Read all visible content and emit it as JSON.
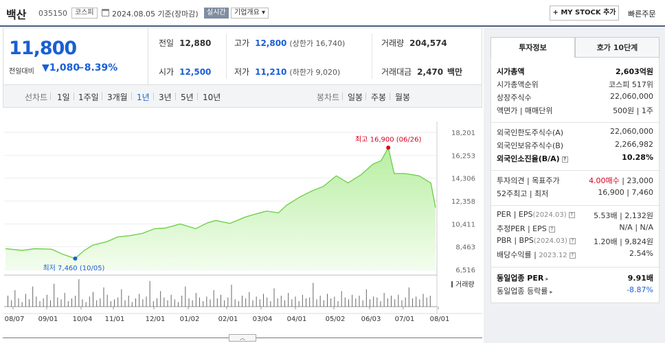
{
  "header": {
    "stock_name": "백산",
    "stock_code": "035150",
    "market": "코스피",
    "date_text": "2024.08.05  기준(장마감)",
    "realtime": "실시간",
    "overview": "기업개요",
    "overview_arrow": "▾",
    "mystock": "+ MY STOCK 추가",
    "quick_order": "빠른주문"
  },
  "price": {
    "current": "11,800",
    "change_label": "전일대비",
    "change_arrow": "▼",
    "change_abs": "1,080",
    "change_pct": "−8.39%"
  },
  "stats": {
    "prev_label": "전일",
    "prev_value": "12,880",
    "high_label": "고가",
    "high_value": "12,800",
    "high_sub": "(상한가 16,740)",
    "volume_label": "거래량",
    "volume_value": "204,574",
    "open_label": "시가",
    "open_value": "12,500",
    "low_label": "저가",
    "low_value": "11,210",
    "low_sub": "(하한가 9,020)",
    "amount_label": "거래대금",
    "amount_value": "2,470",
    "amount_unit": "백만"
  },
  "tabs": {
    "line_chart": "선차트",
    "periods": [
      "1일",
      "1주일",
      "3개월",
      "1년",
      "3년",
      "5년",
      "10년"
    ],
    "active_period": "1년",
    "candle_chart": "봉차트",
    "candle_periods": [
      "일봉",
      "주봉",
      "월봉"
    ]
  },
  "chart_data": {
    "type": "area",
    "x_labels": [
      "08/07",
      "09/01",
      "10/04",
      "11/01",
      "12/01",
      "01/02",
      "02/01",
      "03/04",
      "04/01",
      "05/02",
      "06/03",
      "07/01",
      "08/01"
    ],
    "yticks": [
      18201,
      16253,
      14306,
      12358,
      10411,
      8463,
      6516
    ],
    "ylim": [
      6516,
      18201
    ],
    "series": [
      {
        "x": [
          "2023-08-07",
          "2023-08-21",
          "2023-09-01",
          "2023-09-15",
          "2023-09-25",
          "2023-10-04",
          "2023-10-05",
          "2023-10-12",
          "2023-10-20",
          "2023-11-01",
          "2023-11-10",
          "2023-11-20",
          "2023-12-01",
          "2023-12-11",
          "2023-12-20",
          "2024-01-02",
          "2024-01-15",
          "2024-01-25",
          "2024-02-01",
          "2024-02-13",
          "2024-02-26",
          "2024-03-04",
          "2024-03-15",
          "2024-03-25",
          "2024-04-01",
          "2024-04-12",
          "2024-04-22",
          "2024-05-02",
          "2024-05-13",
          "2024-05-23",
          "2024-06-03",
          "2024-06-13",
          "2024-06-20",
          "2024-06-26",
          "2024-07-01",
          "2024-07-10",
          "2024-07-22",
          "2024-08-01",
          "2024-08-05"
        ],
        "y": [
          8300,
          8150,
          8300,
          8250,
          7800,
          7500,
          7460,
          8100,
          8600,
          8900,
          9300,
          9400,
          9600,
          10000,
          10050,
          10400,
          10000,
          10500,
          10700,
          10450,
          11000,
          11200,
          11500,
          11350,
          12000,
          12700,
          13200,
          13600,
          14500,
          13900,
          14600,
          15500,
          15800,
          16900,
          14700,
          14700,
          14500,
          13900,
          11800
        ]
      }
    ],
    "annotations": {
      "high": {
        "label": "최고 16,900 (06/26)",
        "date": "2024-06-26",
        "value": 16900
      },
      "low": {
        "label": "최저 7,460 (10/05)",
        "date": "2023-10-05",
        "value": 7460
      }
    },
    "volume_label": "거래량",
    "volume_bars": [
      12,
      7,
      18,
      9,
      5,
      14,
      8,
      22,
      11,
      6,
      9,
      13,
      7,
      25,
      10,
      8,
      15,
      6,
      9,
      12,
      30,
      8,
      5,
      11,
      16,
      7,
      9,
      21,
      13,
      6,
      8,
      10,
      19,
      7,
      12,
      5,
      9,
      14,
      8,
      11,
      28,
      6,
      9,
      17,
      10,
      7,
      13,
      8,
      5,
      12,
      22,
      9,
      7,
      15,
      10,
      6,
      11,
      8,
      18,
      9,
      13,
      7,
      10,
      24,
      8,
      6,
      12,
      9,
      16,
      7,
      11,
      8,
      14,
      10,
      6,
      20,
      9,
      12,
      7,
      15,
      8,
      11,
      6,
      13,
      9,
      10,
      26,
      8,
      12,
      7,
      14,
      9,
      11,
      6,
      17,
      10,
      8,
      13,
      9,
      12,
      7,
      19,
      8,
      11,
      10,
      6,
      15,
      9,
      12,
      8,
      13,
      7,
      10,
      21,
      9,
      11,
      8,
      14,
      10,
      12
    ]
  },
  "expand": "︿",
  "right": {
    "tab_invest": "투자정보",
    "tab_hoga": "호가 10단계",
    "rows": [
      {
        "k": "시가총액",
        "v": "2,603억원",
        "bold": true
      },
      {
        "k": "시가총액순위",
        "v": "코스피  517위"
      },
      {
        "k": "상장주식수",
        "v": "22,060,000"
      },
      {
        "k": "액면가 | 매매단위",
        "v": "500원 | 1주"
      },
      {
        "k": "외국인한도주식수(A)",
        "v": "22,060,000"
      },
      {
        "k": "외국인보유주식수(B)",
        "v": "2,266,982"
      },
      {
        "k": "외국인소진율(B/A)",
        "v": "10.28%",
        "bold": true,
        "q": true
      },
      {
        "k": "투자의견 | 목표주가",
        "v_red": "4.00매수",
        "v": " | 23,000"
      },
      {
        "k": "52주최고 | 최저",
        "v": "16,900 | 7,460"
      },
      {
        "k": "PER | EPS",
        "k_sub": "(2024.03)",
        "v": "5.53배 | 2,132원",
        "q": true
      },
      {
        "k": "추정PER | EPS",
        "v": "N/A | N/A",
        "q": true
      },
      {
        "k": "PBR | BPS",
        "k_sub": "(2024.03)",
        "v": "1.20배 | 9,824원",
        "q": true
      },
      {
        "k": "배당수익률 | ",
        "k_sub": "2023.12",
        "v": "2.54%",
        "q": true
      },
      {
        "k": "동일업종 PER",
        "v": "9.91배",
        "bold": true,
        "arrow": true
      },
      {
        "k": "동일업종 등락률",
        "v": "-8.87%",
        "blue": true,
        "arrow": true
      }
    ]
  }
}
